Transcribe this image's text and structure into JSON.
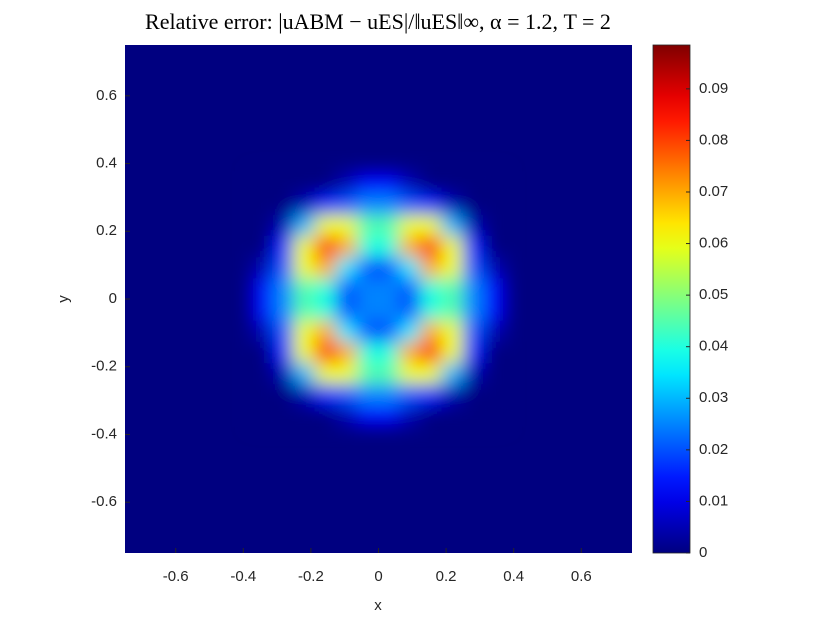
{
  "chart_data": {
    "type": "heatmap",
    "title": "Relative error: |uABM − uES|/‖uES‖∞, α = 1.2, T = 2",
    "x_label": "x",
    "y_label": "y",
    "xlim": [
      -0.75,
      0.75
    ],
    "ylim": [
      -0.75,
      0.75
    ],
    "xticks": [
      -0.6,
      -0.4,
      -0.2,
      0,
      0.2,
      0.4,
      0.6
    ],
    "yticks": [
      -0.6,
      -0.4,
      -0.2,
      0,
      0.2,
      0.4,
      0.6
    ],
    "x": [
      -0.34375,
      -0.28125,
      -0.21875,
      -0.15625,
      -0.09375,
      -0.03125,
      0.03125,
      0.09375,
      0.15625,
      0.21875,
      0.28125,
      0.34375
    ],
    "y": [
      -0.34375,
      -0.28125,
      -0.21875,
      -0.15625,
      -0.09375,
      -0.03125,
      0.03125,
      0.09375,
      0.15625,
      0.21875,
      0.28125,
      0.34375
    ],
    "values": [
      [
        0,
        0,
        0,
        0,
        0.005,
        0.012,
        0.012,
        0.005,
        0,
        0,
        0,
        0
      ],
      [
        0,
        0,
        0.005,
        0.015,
        0.02,
        0.025,
        0.025,
        0.02,
        0.015,
        0.005,
        0,
        0
      ],
      [
        0,
        0.005,
        0.03,
        0.06,
        0.06,
        0.045,
        0.045,
        0.06,
        0.06,
        0.03,
        0.005,
        0
      ],
      [
        0,
        0.015,
        0.06,
        0.085,
        0.07,
        0.04,
        0.04,
        0.07,
        0.085,
        0.06,
        0.015,
        0
      ],
      [
        0.005,
        0.02,
        0.06,
        0.07,
        0.035,
        0.02,
        0.02,
        0.035,
        0.07,
        0.06,
        0.02,
        0.005
      ],
      [
        0.012,
        0.025,
        0.045,
        0.04,
        0.02,
        0.025,
        0.025,
        0.02,
        0.04,
        0.045,
        0.025,
        0.012
      ],
      [
        0.012,
        0.025,
        0.045,
        0.04,
        0.02,
        0.025,
        0.025,
        0.02,
        0.04,
        0.045,
        0.025,
        0.012
      ],
      [
        0.005,
        0.02,
        0.06,
        0.07,
        0.035,
        0.02,
        0.02,
        0.035,
        0.07,
        0.06,
        0.02,
        0.005
      ],
      [
        0,
        0.015,
        0.06,
        0.085,
        0.07,
        0.04,
        0.04,
        0.07,
        0.085,
        0.06,
        0.015,
        0
      ],
      [
        0,
        0.005,
        0.03,
        0.06,
        0.06,
        0.045,
        0.045,
        0.06,
        0.06,
        0.03,
        0.005,
        0
      ],
      [
        0,
        0,
        0.005,
        0.015,
        0.02,
        0.025,
        0.025,
        0.02,
        0.015,
        0.005,
        0,
        0
      ],
      [
        0,
        0,
        0,
        0,
        0.005,
        0.012,
        0.012,
        0.005,
        0,
        0,
        0,
        0
      ]
    ],
    "colormap": "jet",
    "clim": [
      0,
      0.0985
    ],
    "cticks": [
      0,
      0.01,
      0.02,
      0.03,
      0.04,
      0.05,
      0.06,
      0.07,
      0.08,
      0.09
    ]
  }
}
